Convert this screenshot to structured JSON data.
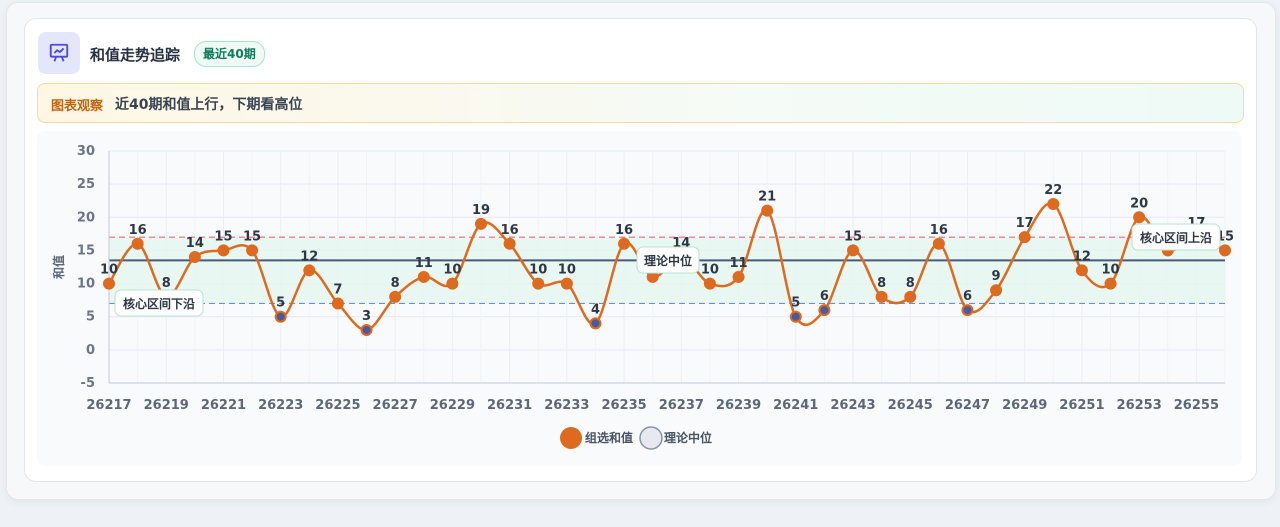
{
  "header": {
    "icon": "presentation-chart-icon",
    "title": "和值走势追踪",
    "badge": "最近40期"
  },
  "observation": {
    "tag": "图表观察",
    "text": "近40期和值上行，下期看高位"
  },
  "colors": {
    "line": "#dd6a1f",
    "band_fill": "#e3f6ee",
    "mid_line": "#475a78",
    "upper_line": "#e07070",
    "lower_line": "#6b8fcf",
    "low_point": "#4a5aa0"
  },
  "chart_data": {
    "type": "line",
    "title": "",
    "xlabel": "",
    "ylabel": "和值",
    "ylim": [
      -5,
      30
    ],
    "yticks": [
      -5,
      0,
      5,
      10,
      15,
      20,
      25,
      30
    ],
    "grid": true,
    "legend_position": "bottom",
    "x": [
      26217,
      26218,
      26219,
      26220,
      26221,
      26222,
      26223,
      26224,
      26225,
      26226,
      26227,
      26228,
      26229,
      26230,
      26231,
      26232,
      26233,
      26234,
      26235,
      26236,
      26237,
      26238,
      26239,
      26240,
      26241,
      26242,
      26243,
      26244,
      26245,
      26246,
      26247,
      26248,
      26249,
      26250,
      26251,
      26252,
      26253,
      26254,
      26255,
      26256
    ],
    "xticks": [
      26217,
      26219,
      26221,
      26223,
      26225,
      26227,
      26229,
      26231,
      26233,
      26235,
      26237,
      26239,
      26241,
      26243,
      26245,
      26247,
      26249,
      26251,
      26253,
      26255
    ],
    "series": [
      {
        "name": "组选和值",
        "values": [
          10,
          16,
          8,
          14,
          15,
          15,
          5,
          12,
          7,
          3,
          8,
          11,
          10,
          19,
          16,
          10,
          10,
          4,
          16,
          11,
          14,
          10,
          11,
          21,
          5,
          6,
          15,
          8,
          8,
          16,
          6,
          9,
          17,
          22,
          12,
          10,
          20,
          15,
          17,
          15
        ]
      }
    ],
    "reference_lines": [
      {
        "name": "理论中位",
        "value": 13.5
      },
      {
        "name": "核心区间上沿",
        "value": 17
      },
      {
        "name": "核心区间下沿",
        "value": 7
      }
    ],
    "legend": [
      "组选和值",
      "理论中位"
    ]
  }
}
